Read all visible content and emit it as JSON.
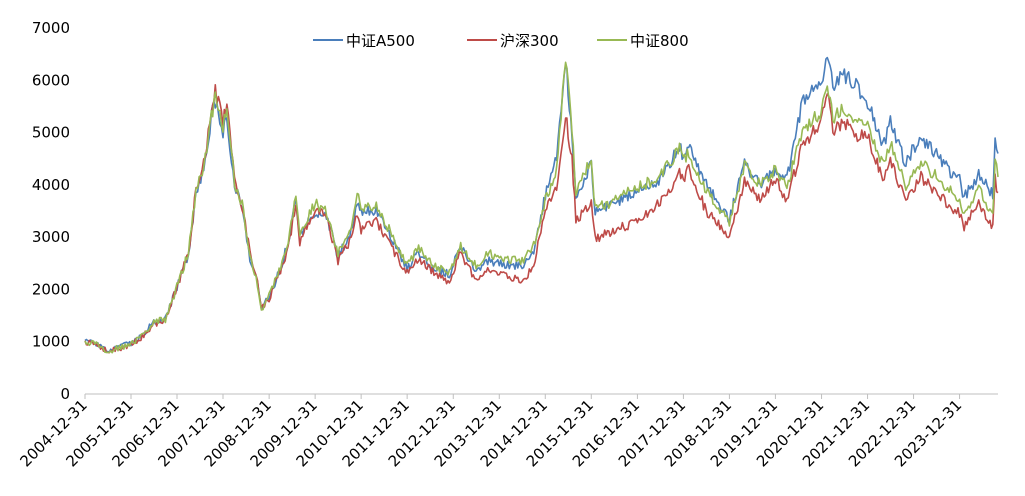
{
  "chart_data": {
    "type": "line",
    "title": "",
    "xlabel": "",
    "ylabel": "",
    "ylim": [
      0,
      7000
    ],
    "yticks": [
      0,
      1000,
      2000,
      3000,
      4000,
      5000,
      6000,
      7000
    ],
    "xticks": [
      "2004-12-31",
      "2005-12-31",
      "2006-12-31",
      "2007-12-31",
      "2008-12-31",
      "2009-12-31",
      "2010-12-31",
      "2011-12-31",
      "2012-12-31",
      "2013-12-31",
      "2014-12-31",
      "2015-12-31",
      "2016-12-31",
      "2017-12-31",
      "2018-12-31",
      "2019-12-31",
      "2020-12-31",
      "2021-12-31",
      "2022-12-31",
      "2023-12-31"
    ],
    "x_range": [
      "2004-12-31",
      "2024-10-31"
    ],
    "legend_position": "top-center",
    "grid": false,
    "series": [
      {
        "name": "中证A500",
        "color": "#4a7ebb",
        "points": [
          [
            "2004-12-31",
            1000
          ],
          [
            "2005-03-31",
            960
          ],
          [
            "2005-06-30",
            820
          ],
          [
            "2005-09-30",
            900
          ],
          [
            "2005-12-31",
            960
          ],
          [
            "2006-03-31",
            1120
          ],
          [
            "2006-06-30",
            1380
          ],
          [
            "2006-09-30",
            1430
          ],
          [
            "2006-12-31",
            2050
          ],
          [
            "2007-03-31",
            2650
          ],
          [
            "2007-05-31",
            3800
          ],
          [
            "2007-07-31",
            4300
          ],
          [
            "2007-09-30",
            5300
          ],
          [
            "2007-10-31",
            5600
          ],
          [
            "2007-12-31",
            5000
          ],
          [
            "2008-01-31",
            5300
          ],
          [
            "2008-03-31",
            4000
          ],
          [
            "2008-05-31",
            3600
          ],
          [
            "2008-07-31",
            2600
          ],
          [
            "2008-09-30",
            2100
          ],
          [
            "2008-10-31",
            1650
          ],
          [
            "2008-12-31",
            1850
          ],
          [
            "2009-03-31",
            2400
          ],
          [
            "2009-05-31",
            2900
          ],
          [
            "2009-07-31",
            3700
          ],
          [
            "2009-08-31",
            3000
          ],
          [
            "2009-12-31",
            3500
          ],
          [
            "2010-03-31",
            3400
          ],
          [
            "2010-06-30",
            2650
          ],
          [
            "2010-09-30",
            3000
          ],
          [
            "2010-11-30",
            3650
          ],
          [
            "2010-12-31",
            3500
          ],
          [
            "2011-04-30",
            3500
          ],
          [
            "2011-08-31",
            3000
          ],
          [
            "2011-12-31",
            2400
          ],
          [
            "2012-03-31",
            2700
          ],
          [
            "2012-07-31",
            2400
          ],
          [
            "2012-11-30",
            2300
          ],
          [
            "2013-02-28",
            2800
          ],
          [
            "2013-06-30",
            2350
          ],
          [
            "2013-09-30",
            2550
          ],
          [
            "2013-12-31",
            2500
          ],
          [
            "2014-06-30",
            2450
          ],
          [
            "2014-09-30",
            2750
          ],
          [
            "2014-12-31",
            3800
          ],
          [
            "2015-03-31",
            4500
          ],
          [
            "2015-06-10",
            6400
          ],
          [
            "2015-07-31",
            4900
          ],
          [
            "2015-08-31",
            3800
          ],
          [
            "2015-12-31",
            4400
          ],
          [
            "2016-01-31",
            3500
          ],
          [
            "2016-06-30",
            3650
          ],
          [
            "2016-12-31",
            3900
          ],
          [
            "2017-06-30",
            4100
          ],
          [
            "2017-11-30",
            4750
          ],
          [
            "2017-12-31",
            4500
          ],
          [
            "2018-01-31",
            4800
          ],
          [
            "2018-06-30",
            4000
          ],
          [
            "2018-12-31",
            3350
          ],
          [
            "2019-04-30",
            4400
          ],
          [
            "2019-08-31",
            4000
          ],
          [
            "2019-12-31",
            4300
          ],
          [
            "2020-03-31",
            4100
          ],
          [
            "2020-07-31",
            5600
          ],
          [
            "2020-12-31",
            6000
          ],
          [
            "2021-02-15",
            6500
          ],
          [
            "2021-03-31",
            5900
          ],
          [
            "2021-06-30",
            6100
          ],
          [
            "2021-09-30",
            5900
          ],
          [
            "2021-12-31",
            5600
          ],
          [
            "2022-04-30",
            4700
          ],
          [
            "2022-06-30",
            5200
          ],
          [
            "2022-10-31",
            4400
          ],
          [
            "2022-12-31",
            4700
          ],
          [
            "2023-02-28",
            4900
          ],
          [
            "2023-06-30",
            4600
          ],
          [
            "2023-10-31",
            4200
          ],
          [
            "2023-12-31",
            4100
          ],
          [
            "2024-02-05",
            3750
          ],
          [
            "2024-05-31",
            4200
          ],
          [
            "2024-09-20",
            3800
          ],
          [
            "2024-10-08",
            4950
          ],
          [
            "2024-10-31",
            4600
          ]
        ]
      },
      {
        "name": "沪深300",
        "color": "#be4b48",
        "points": [
          [
            "2004-12-31",
            1000
          ],
          [
            "2005-03-31",
            950
          ],
          [
            "2005-06-30",
            810
          ],
          [
            "2005-09-30",
            880
          ],
          [
            "2005-12-31",
            930
          ],
          [
            "2006-03-31",
            1100
          ],
          [
            "2006-06-30",
            1350
          ],
          [
            "2006-09-30",
            1400
          ],
          [
            "2006-12-31",
            2050
          ],
          [
            "2007-03-31",
            2700
          ],
          [
            "2007-05-31",
            3900
          ],
          [
            "2007-07-31",
            4400
          ],
          [
            "2007-09-30",
            5400
          ],
          [
            "2007-10-31",
            5800
          ],
          [
            "2007-12-31",
            5200
          ],
          [
            "2008-01-31",
            5600
          ],
          [
            "2008-03-31",
            4100
          ],
          [
            "2008-05-31",
            3600
          ],
          [
            "2008-07-31",
            2700
          ],
          [
            "2008-09-30",
            2100
          ],
          [
            "2008-10-31",
            1650
          ],
          [
            "2008-12-31",
            1820
          ],
          [
            "2009-03-31",
            2350
          ],
          [
            "2009-05-31",
            2800
          ],
          [
            "2009-07-31",
            3600
          ],
          [
            "2009-08-31",
            2900
          ],
          [
            "2009-12-31",
            3550
          ],
          [
            "2010-03-31",
            3350
          ],
          [
            "2010-06-30",
            2550
          ],
          [
            "2010-09-30",
            2900
          ],
          [
            "2010-11-30",
            3500
          ],
          [
            "2010-12-31",
            3150
          ],
          [
            "2011-04-30",
            3300
          ],
          [
            "2011-08-31",
            2800
          ],
          [
            "2011-12-31",
            2300
          ],
          [
            "2012-03-31",
            2600
          ],
          [
            "2012-07-31",
            2300
          ],
          [
            "2012-11-30",
            2150
          ],
          [
            "2013-02-28",
            2700
          ],
          [
            "2013-06-30",
            2150
          ],
          [
            "2013-09-30",
            2400
          ],
          [
            "2013-12-31",
            2300
          ],
          [
            "2014-06-30",
            2150
          ],
          [
            "2014-09-30",
            2450
          ],
          [
            "2014-12-31",
            3500
          ],
          [
            "2015-03-31",
            4000
          ],
          [
            "2015-06-10",
            5350
          ],
          [
            "2015-07-31",
            4500
          ],
          [
            "2015-08-31",
            3300
          ],
          [
            "2015-12-31",
            3700
          ],
          [
            "2016-01-31",
            2950
          ],
          [
            "2016-06-30",
            3150
          ],
          [
            "2016-12-31",
            3300
          ],
          [
            "2017-06-30",
            3650
          ],
          [
            "2017-11-30",
            4200
          ],
          [
            "2017-12-31",
            4050
          ],
          [
            "2018-01-31",
            4350
          ],
          [
            "2018-06-30",
            3500
          ],
          [
            "2018-12-31",
            3000
          ],
          [
            "2019-04-30",
            4050
          ],
          [
            "2019-08-31",
            3750
          ],
          [
            "2019-12-31",
            4100
          ],
          [
            "2020-03-31",
            3700
          ],
          [
            "2020-07-31",
            4750
          ],
          [
            "2020-12-31",
            5200
          ],
          [
            "2021-02-15",
            5800
          ],
          [
            "2021-03-31",
            5050
          ],
          [
            "2021-06-30",
            5200
          ],
          [
            "2021-09-30",
            4900
          ],
          [
            "2021-12-31",
            4950
          ],
          [
            "2022-04-30",
            4100
          ],
          [
            "2022-06-30",
            4500
          ],
          [
            "2022-10-31",
            3650
          ],
          [
            "2022-12-31",
            3900
          ],
          [
            "2023-02-28",
            4150
          ],
          [
            "2023-06-30",
            3850
          ],
          [
            "2023-10-31",
            3550
          ],
          [
            "2023-12-31",
            3450
          ],
          [
            "2024-02-05",
            3200
          ],
          [
            "2024-05-31",
            3650
          ],
          [
            "2024-09-20",
            3150
          ],
          [
            "2024-10-08",
            4100
          ],
          [
            "2024-10-31",
            3850
          ]
        ]
      },
      {
        "name": "中证800",
        "color": "#98b954",
        "points": [
          [
            "2004-12-31",
            1000
          ],
          [
            "2005-03-31",
            955
          ],
          [
            "2005-06-30",
            815
          ],
          [
            "2005-09-30",
            890
          ],
          [
            "2005-12-31",
            950
          ],
          [
            "2006-03-31",
            1120
          ],
          [
            "2006-06-30",
            1380
          ],
          [
            "2006-09-30",
            1420
          ],
          [
            "2006-12-31",
            2050
          ],
          [
            "2007-03-31",
            2700
          ],
          [
            "2007-05-31",
            3900
          ],
          [
            "2007-07-31",
            4350
          ],
          [
            "2007-09-30",
            5300
          ],
          [
            "2007-10-31",
            5700
          ],
          [
            "2007-12-31",
            5100
          ],
          [
            "2008-01-31",
            5500
          ],
          [
            "2008-03-31",
            4050
          ],
          [
            "2008-05-31",
            3650
          ],
          [
            "2008-07-31",
            2650
          ],
          [
            "2008-09-30",
            2100
          ],
          [
            "2008-10-31",
            1580
          ],
          [
            "2008-12-31",
            1870
          ],
          [
            "2009-03-31",
            2450
          ],
          [
            "2009-05-31",
            2950
          ],
          [
            "2009-07-31",
            3800
          ],
          [
            "2009-08-31",
            3050
          ],
          [
            "2009-12-31",
            3650
          ],
          [
            "2010-03-31",
            3500
          ],
          [
            "2010-06-30",
            2700
          ],
          [
            "2010-09-30",
            3100
          ],
          [
            "2010-11-30",
            3800
          ],
          [
            "2010-12-31",
            3550
          ],
          [
            "2011-04-30",
            3600
          ],
          [
            "2011-08-31",
            3050
          ],
          [
            "2011-12-31",
            2450
          ],
          [
            "2012-03-31",
            2800
          ],
          [
            "2012-07-31",
            2450
          ],
          [
            "2012-11-30",
            2350
          ],
          [
            "2013-02-28",
            2850
          ],
          [
            "2013-06-30",
            2450
          ],
          [
            "2013-09-30",
            2700
          ],
          [
            "2013-12-31",
            2600
          ],
          [
            "2014-06-30",
            2550
          ],
          [
            "2014-09-30",
            2850
          ],
          [
            "2014-12-31",
            3700
          ],
          [
            "2015-03-31",
            4300
          ],
          [
            "2015-06-10",
            6400
          ],
          [
            "2015-07-31",
            5100
          ],
          [
            "2015-08-31",
            3800
          ],
          [
            "2015-12-31",
            4500
          ],
          [
            "2016-01-31",
            3550
          ],
          [
            "2016-06-30",
            3700
          ],
          [
            "2016-12-31",
            3950
          ],
          [
            "2017-06-30",
            4150
          ],
          [
            "2017-11-30",
            4700
          ],
          [
            "2017-12-31",
            4450
          ],
          [
            "2018-01-31",
            4600
          ],
          [
            "2018-06-30",
            3900
          ],
          [
            "2018-12-31",
            3300
          ],
          [
            "2019-04-30",
            4350
          ],
          [
            "2019-08-31",
            4000
          ],
          [
            "2019-12-31",
            4300
          ],
          [
            "2020-03-31",
            3950
          ],
          [
            "2020-07-31",
            5050
          ],
          [
            "2020-12-31",
            5400
          ],
          [
            "2021-02-15",
            5950
          ],
          [
            "2021-03-31",
            5300
          ],
          [
            "2021-06-30",
            5450
          ],
          [
            "2021-09-30",
            5200
          ],
          [
            "2021-12-31",
            5200
          ],
          [
            "2022-04-30",
            4400
          ],
          [
            "2022-06-30",
            4800
          ],
          [
            "2022-10-31",
            3950
          ],
          [
            "2022-12-31",
            4200
          ],
          [
            "2023-02-28",
            4450
          ],
          [
            "2023-06-30",
            4150
          ],
          [
            "2023-10-31",
            3850
          ],
          [
            "2023-12-31",
            3750
          ],
          [
            "2024-02-05",
            3450
          ],
          [
            "2024-05-31",
            3950
          ],
          [
            "2024-09-20",
            3400
          ],
          [
            "2024-10-08",
            4450
          ],
          [
            "2024-10-31",
            4150
          ]
        ]
      }
    ]
  }
}
